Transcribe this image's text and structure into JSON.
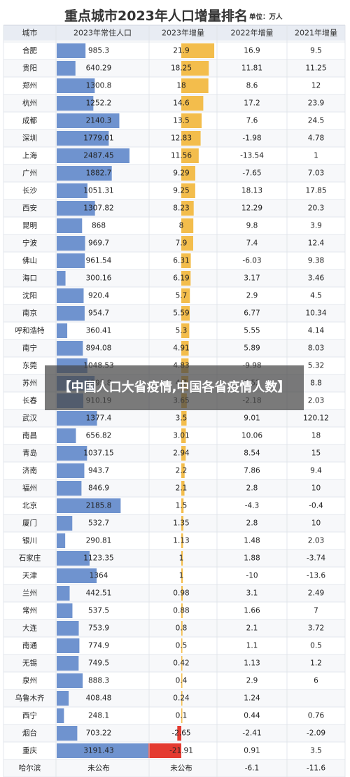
{
  "header": {
    "title": "重点城市2023年人口增量排名",
    "unit": "单位：万人"
  },
  "overlay": {
    "text": "【中国人口大省疫情,中国各省疫情人数】"
  },
  "colors": {
    "pop_bar": "#6f93cf",
    "inc_positive": "#f3bd4c",
    "inc_negative": "#e43a30",
    "header_bg": "#e8ecf3",
    "row_bg": "#ffffff"
  },
  "chart_data": {
    "type": "table",
    "columns": [
      "城市",
      "2023年常住人口",
      "2023年增量",
      "2022年增量",
      "2021年增量"
    ],
    "rows": [
      {
        "city": "合肥",
        "pop": "985.3",
        "inc2023": "21.9",
        "inc2022": "16.9",
        "inc2021": "9.5"
      },
      {
        "city": "贵阳",
        "pop": "640.29",
        "inc2023": "18.25",
        "inc2022": "11.81",
        "inc2021": "11.25"
      },
      {
        "city": "郑州",
        "pop": "1300.8",
        "inc2023": "18",
        "inc2022": "8.6",
        "inc2021": "12"
      },
      {
        "city": "杭州",
        "pop": "1252.2",
        "inc2023": "14.6",
        "inc2022": "17.2",
        "inc2021": "23.9"
      },
      {
        "city": "成都",
        "pop": "2140.3",
        "inc2023": "13.5",
        "inc2022": "7.6",
        "inc2021": "24.5"
      },
      {
        "city": "深圳",
        "pop": "1779.01",
        "inc2023": "12.83",
        "inc2022": "-1.98",
        "inc2021": "4.78"
      },
      {
        "city": "上海",
        "pop": "2487.45",
        "inc2023": "11.56",
        "inc2022": "-13.54",
        "inc2021": "1"
      },
      {
        "city": "广州",
        "pop": "1882.7",
        "inc2023": "9.29",
        "inc2022": "-7.65",
        "inc2021": "7.03"
      },
      {
        "city": "长沙",
        "pop": "1051.31",
        "inc2023": "9.25",
        "inc2022": "18.13",
        "inc2021": "17.85"
      },
      {
        "city": "西安",
        "pop": "1307.82",
        "inc2023": "8.23",
        "inc2022": "12.29",
        "inc2021": "20.3"
      },
      {
        "city": "昆明",
        "pop": "868",
        "inc2023": "8",
        "inc2022": "9.8",
        "inc2021": "3.9"
      },
      {
        "city": "宁波",
        "pop": "969.7",
        "inc2023": "7.9",
        "inc2022": "7.4",
        "inc2021": "12.4"
      },
      {
        "city": "佛山",
        "pop": "961.54",
        "inc2023": "6.31",
        "inc2022": "-6.03",
        "inc2021": "9.38"
      },
      {
        "city": "海口",
        "pop": "300.16",
        "inc2023": "6.19",
        "inc2022": "3.17",
        "inc2021": "3.46"
      },
      {
        "city": "沈阳",
        "pop": "920.4",
        "inc2023": "5.7",
        "inc2022": "2.9",
        "inc2021": "4.5"
      },
      {
        "city": "南京",
        "pop": "954.7",
        "inc2023": "5.59",
        "inc2022": "6.77",
        "inc2021": "10.34"
      },
      {
        "city": "呼和浩特",
        "pop": "360.41",
        "inc2023": "5.3",
        "inc2022": "5.55",
        "inc2021": "4.14"
      },
      {
        "city": "南宁",
        "pop": "894.08",
        "inc2023": "4.91",
        "inc2022": "5.89",
        "inc2021": "8.03"
      },
      {
        "city": "东莞",
        "pop": "1048.53",
        "inc2023": "4.83",
        "inc2022": "-9.98",
        "inc2021": "5.32"
      },
      {
        "city": "苏州",
        "pop": "1295.8",
        "inc2023": "4.7",
        "inc2022": "6.52",
        "inc2021": "8.8"
      },
      {
        "city": "长春",
        "pop": "910.19",
        "inc2023": "3.65",
        "inc2022": "-2.18",
        "inc2021": "2.03"
      },
      {
        "city": "武汉",
        "pop": "1377.4",
        "inc2023": "3.5",
        "inc2022": "9.01",
        "inc2021": "120.12"
      },
      {
        "city": "南昌",
        "pop": "656.82",
        "inc2023": "3.01",
        "inc2022": "10.06",
        "inc2021": "18"
      },
      {
        "city": "青岛",
        "pop": "1037.15",
        "inc2023": "2.94",
        "inc2022": "8.54",
        "inc2021": "15"
      },
      {
        "city": "济南",
        "pop": "943.7",
        "inc2023": "2.2",
        "inc2022": "7.86",
        "inc2021": "9.4"
      },
      {
        "city": "福州",
        "pop": "846.9",
        "inc2023": "2.1",
        "inc2022": "2.8",
        "inc2021": "10"
      },
      {
        "city": "北京",
        "pop": "2185.8",
        "inc2023": "1.5",
        "inc2022": "-4.3",
        "inc2021": "-0.4"
      },
      {
        "city": "厦门",
        "pop": "532.7",
        "inc2023": "1.35",
        "inc2022": "2.8",
        "inc2021": "10"
      },
      {
        "city": "银川",
        "pop": "290.81",
        "inc2023": "1.13",
        "inc2022": "1.48",
        "inc2021": "2.03"
      },
      {
        "city": "石家庄",
        "pop": "1123.35",
        "inc2023": "1",
        "inc2022": "1.88",
        "inc2021": "-3.74"
      },
      {
        "city": "天津",
        "pop": "1364",
        "inc2023": "1",
        "inc2022": "-10",
        "inc2021": "-13.6"
      },
      {
        "city": "兰州",
        "pop": "442.51",
        "inc2023": "0.98",
        "inc2022": "3.1",
        "inc2021": "2.49"
      },
      {
        "city": "常州",
        "pop": "537.5",
        "inc2023": "0.88",
        "inc2022": "1.66",
        "inc2021": "7"
      },
      {
        "city": "大连",
        "pop": "753.9",
        "inc2023": "0.8",
        "inc2022": "2.1",
        "inc2021": "3.72"
      },
      {
        "city": "南通",
        "pop": "774.9",
        "inc2023": "0.5",
        "inc2022": "1.1",
        "inc2021": "0.5"
      },
      {
        "city": "无锡",
        "pop": "749.5",
        "inc2023": "0.42",
        "inc2022": "1.13",
        "inc2021": "1.2"
      },
      {
        "city": "泉州",
        "pop": "888.3",
        "inc2023": "0.4",
        "inc2022": "2.9",
        "inc2021": "6"
      },
      {
        "city": "乌鲁木齐",
        "pop": "408.48",
        "inc2023": "0.24",
        "inc2022": "1.24",
        "inc2021": ""
      },
      {
        "city": "西宁",
        "pop": "248.1",
        "inc2023": "0.1",
        "inc2022": "0.44",
        "inc2021": "0.76"
      },
      {
        "city": "烟台",
        "pop": "703.22",
        "inc2023": "-2.65",
        "inc2022": "-2.41",
        "inc2021": "-2.09"
      },
      {
        "city": "重庆",
        "pop": "3191.43",
        "inc2023": "-21.91",
        "inc2022": "0.91",
        "inc2021": "3.5"
      },
      {
        "city": "哈尔滨",
        "pop": "未公布",
        "inc2023": "未公布",
        "inc2022": "-6.1",
        "inc2021": "-11.6"
      }
    ]
  }
}
